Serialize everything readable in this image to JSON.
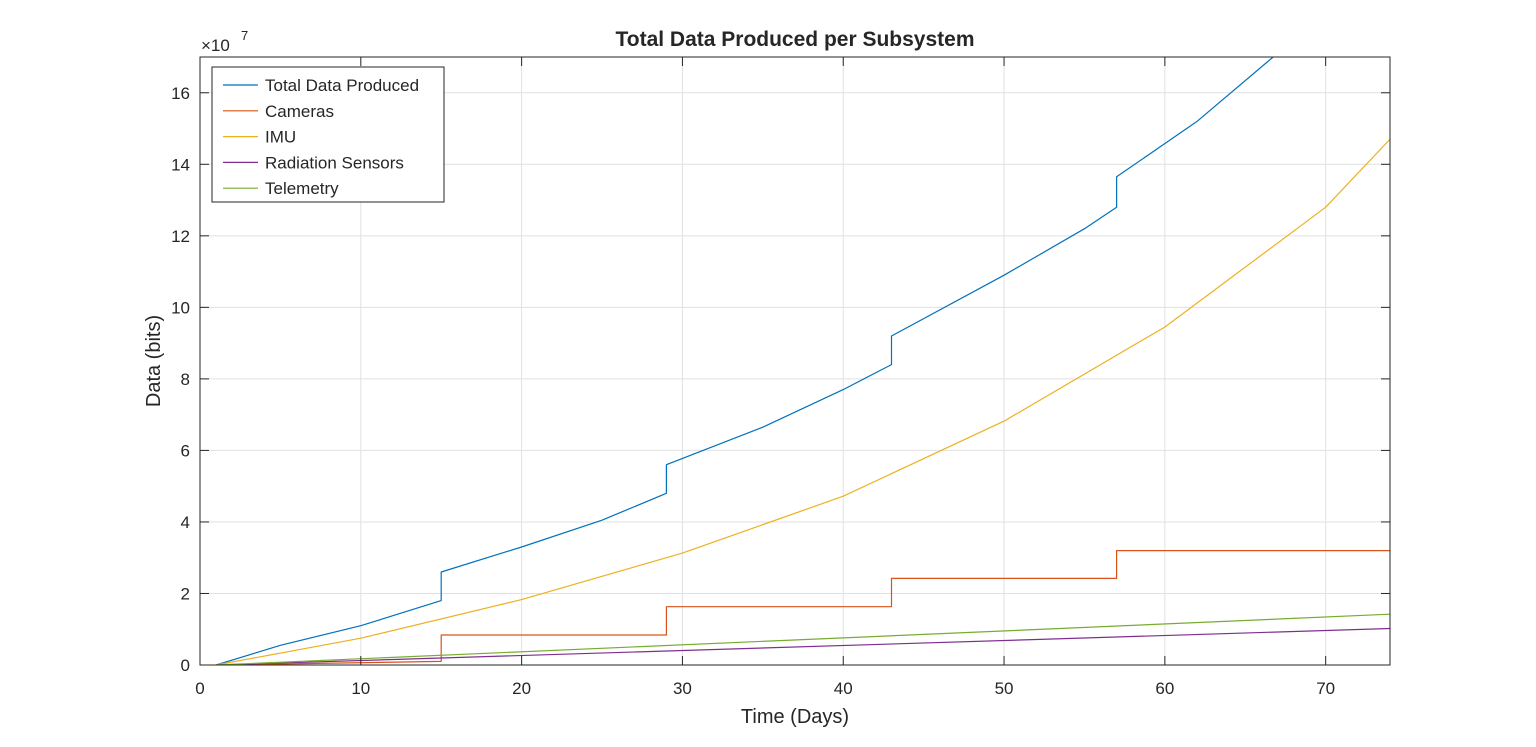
{
  "chart_data": {
    "type": "line",
    "title": "Total Data Produced per Subsystem",
    "xlabel": "Time (Days)",
    "ylabel": "Data (bits)",
    "y_exponent_label": "×10",
    "y_exponent_power": "7",
    "y_scale": 10000000,
    "xlim": [
      0,
      74
    ],
    "ylim": [
      0,
      170000000
    ],
    "xticks": [
      0,
      10,
      20,
      30,
      40,
      50,
      60,
      70
    ],
    "xtick_labels": [
      "0",
      "10",
      "20",
      "30",
      "40",
      "50",
      "60",
      "70"
    ],
    "yticks": [
      0,
      20000000,
      40000000,
      60000000,
      80000000,
      100000000,
      120000000,
      140000000,
      160000000
    ],
    "ytick_labels": [
      "0",
      "2",
      "4",
      "6",
      "8",
      "10",
      "12",
      "14",
      "16"
    ],
    "grid": true,
    "legend_location": "top-left",
    "series": [
      {
        "name": "Total Data Produced",
        "color": "#0072BD",
        "x": [
          1,
          5,
          10,
          15,
          15,
          20,
          25,
          29,
          29,
          35,
          40,
          43,
          43,
          50,
          55,
          57,
          57,
          62,
          67
        ],
        "y": [
          0,
          5500000,
          11000000,
          18000000,
          26000000,
          33000000,
          40500000,
          48000000,
          56000000,
          66500000,
          77000000,
          84000000,
          92000000,
          109000000,
          122000000,
          128000000,
          136500000,
          152000000,
          171000000
        ]
      },
      {
        "name": "Cameras",
        "color": "#D95319",
        "x": [
          1,
          15,
          15,
          29,
          29,
          43,
          43,
          57,
          57,
          74
        ],
        "y": [
          0,
          1000000,
          8400000,
          8400000,
          16300000,
          16300000,
          24200000,
          24200000,
          32000000,
          32000000
        ]
      },
      {
        "name": "IMU",
        "color": "#EDB120",
        "x": [
          1,
          10,
          20,
          30,
          40,
          50,
          60,
          70,
          74
        ],
        "y": [
          0,
          7500000,
          18300000,
          31300000,
          47200000,
          68200000,
          94500000,
          128000000,
          147000000
        ]
      },
      {
        "name": "Radiation Sensors",
        "color": "#7E2F8E",
        "x": [
          1,
          74
        ],
        "y": [
          0,
          10200000
        ]
      },
      {
        "name": "Telemetry",
        "color": "#77AC30",
        "x": [
          1,
          74
        ],
        "y": [
          0,
          14200000
        ]
      }
    ]
  }
}
